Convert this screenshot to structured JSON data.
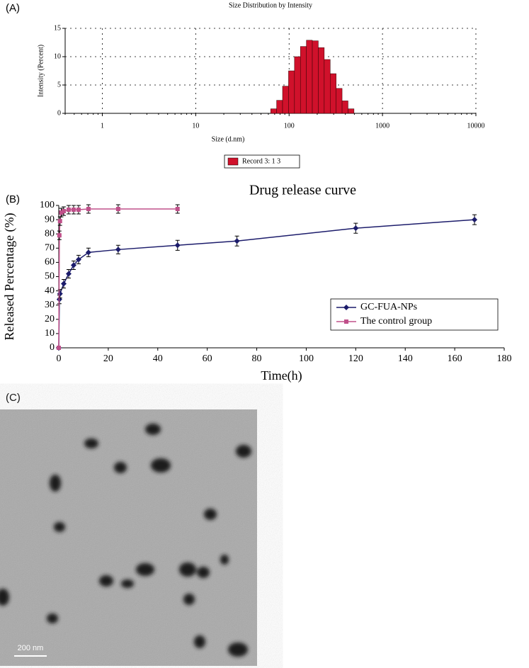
{
  "panel_labels": [
    "(A)",
    "(B)",
    "(C)"
  ],
  "image": {
    "scale_bar": "200 nm"
  },
  "chart_data": [
    {
      "type": "histogram",
      "title": "Size Distribution by Intensity",
      "x_label": "Size (d.nm)",
      "y_label": "Intensity (Percent)",
      "bins": [
        63.5,
        73.5,
        85.1,
        98.6,
        114.2,
        132.2,
        153.1,
        177.3,
        205.3,
        237.8,
        275.4,
        318.9,
        369.3,
        427.7,
        495.3
      ],
      "series": [
        {
          "name": "Record 3: 1 3",
          "color": "#d0112b",
          "values": [
            0.8,
            2.3,
            4.8,
            7.5,
            10,
            11.8,
            12.9,
            12.8,
            11.6,
            9.5,
            7,
            4.4,
            2.2,
            0.8
          ]
        }
      ],
      "xlim": [
        0.4,
        10000
      ],
      "xticks": [
        1,
        10,
        100,
        1000,
        10000
      ],
      "x_log": true,
      "ylim": [
        0,
        15
      ],
      "yticks": [
        0,
        5,
        10,
        15
      ],
      "grid": true,
      "legend": "bottom"
    },
    {
      "type": "line",
      "title": "Drug release curve",
      "x_label": "Time(h)",
      "y_label": "Released Percentage (%)",
      "series": [
        {
          "name": "GC-FUA-NPs",
          "color": "#1c1c6b",
          "marker": "diamond",
          "x": [
            0,
            0.25,
            0.5,
            2,
            4,
            6,
            8,
            12,
            24,
            48,
            72,
            120,
            168
          ],
          "values": [
            0,
            34,
            38,
            45,
            52,
            58,
            62,
            67,
            69,
            72,
            75,
            84,
            90
          ],
          "errors": [
            0,
            3,
            3,
            3,
            3,
            3,
            3,
            3,
            3,
            3.5,
            3.5,
            3.5,
            3.5
          ]
        },
        {
          "name": "The control group",
          "color": "#c0508a",
          "marker": "square",
          "x": [
            0,
            0.25,
            0.5,
            1,
            2,
            4,
            6,
            8,
            12,
            24,
            48
          ],
          "values": [
            0,
            79,
            89,
            95,
            96,
            97,
            97,
            97,
            97.5,
            97.5,
            97.5
          ],
          "errors": [
            0,
            3,
            3,
            3,
            3,
            3,
            3,
            3,
            3,
            3,
            3
          ]
        }
      ],
      "xlim": [
        0,
        180
      ],
      "xticks": [
        0,
        20,
        40,
        60,
        80,
        100,
        120,
        140,
        160,
        180
      ],
      "ylim": [
        0,
        100
      ],
      "yticks": [
        0,
        10,
        20,
        30,
        40,
        50,
        60,
        70,
        80,
        90,
        100
      ],
      "grid": false,
      "legend": "lower right"
    }
  ]
}
